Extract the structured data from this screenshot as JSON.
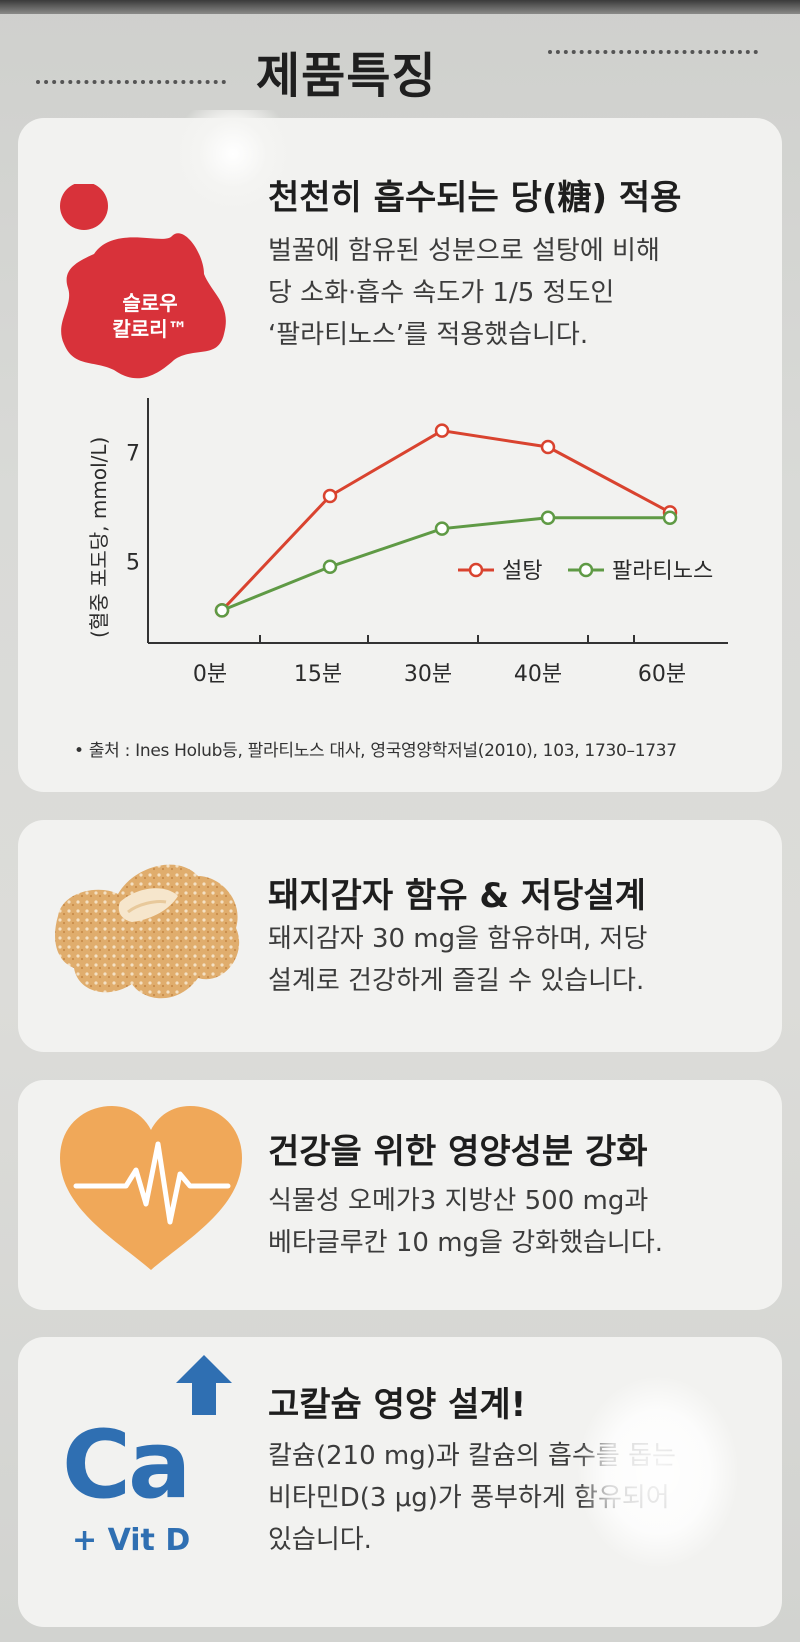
{
  "header": {
    "title": "제품특징"
  },
  "features": [
    {
      "badge": {
        "line1": "슬로우",
        "line2": "칼로리™"
      },
      "title": "천천히 흡수되는 당(糖) 적용",
      "body": "벌꿀에  함유된 성분으로 설탕에 비해\n당 소화·흡수 속도가 1/5 정도인\n‘팔라티노스’를 적용했습니다."
    },
    {
      "title": "돼지감자 함유 & 저당설계",
      "body": "돼지감자 30 mg을 함유하며, 저당\n설계로  건강하게 즐길 수 있습니다."
    },
    {
      "title": "건강을 위한 영양성분 강화",
      "body": "식물성  오메가3 지방산 500 mg과\n베타글루칸 10 mg을 강화했습니다."
    },
    {
      "icon_text": "Ca",
      "icon_subtext": "+ Vit D",
      "title": "고칼슘 영양 설계!",
      "body": "칼슘(210 mg)과 칼슘의 흡수를 돕는\n비타민D(3 μg)가 풍부하게 함유되어\n있습니다."
    }
  ],
  "source_note": "• 출처 : Ines Holub등, 팔라티노스  대사, 영국영양학저널(2010), 103, 1730–1737",
  "colors": {
    "sugar": "#d9432f",
    "palatinose": "#5f9a45",
    "badge": "#d8323a",
    "potato": "#e0ad6d",
    "heart": "#f0a859",
    "calcium": "#2f6fb2"
  },
  "icons": [
    "slow-calorie-badge-icon",
    "jerusalem-artichoke-icon",
    "heart-pulse-icon",
    "calcium-up-arrow-icon"
  ],
  "chart_data": {
    "type": "line",
    "ylabel": "(혈중 포도당, mmol/L)",
    "xlabel": "",
    "categories": [
      "0분",
      "15분",
      "30분",
      "40분",
      "60분"
    ],
    "x": [
      0,
      15,
      30,
      40,
      60
    ],
    "y_ticks": [
      "7",
      "5"
    ],
    "y_tick_values": [
      7,
      5
    ],
    "ylim": [
      3.5,
      8
    ],
    "series": [
      {
        "name": "설탕",
        "values": [
          4.1,
          6.2,
          7.4,
          7.1,
          5.9
        ]
      },
      {
        "name": "팔라티노스",
        "values": [
          4.1,
          4.9,
          5.6,
          5.8,
          5.8
        ]
      }
    ],
    "legend": "right",
    "grid": false
  }
}
